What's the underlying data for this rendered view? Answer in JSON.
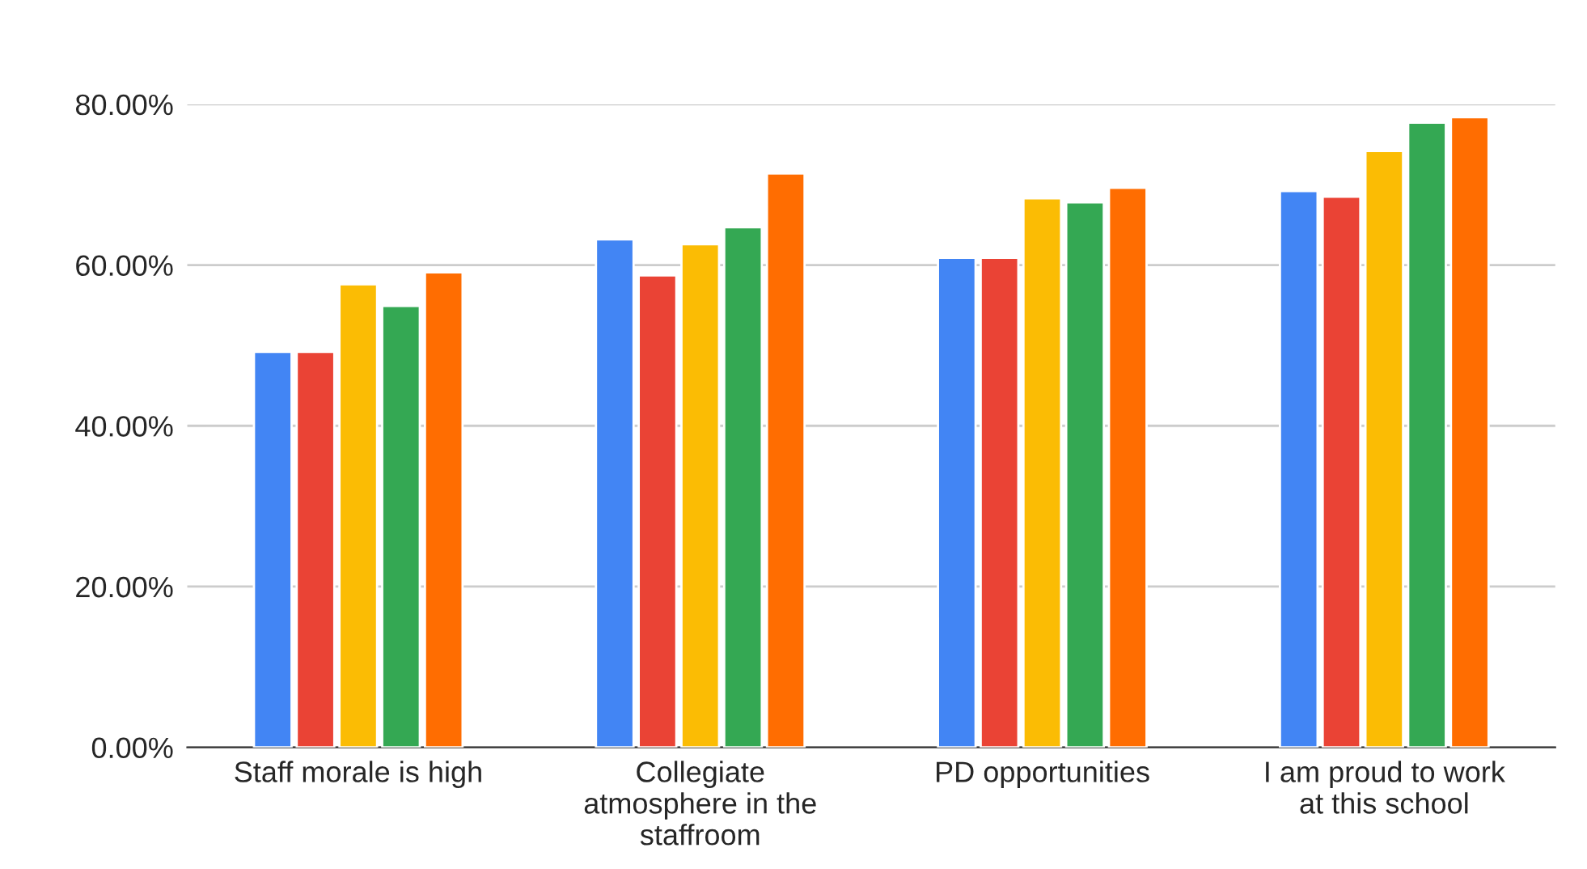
{
  "chart_data": {
    "type": "bar",
    "categories": [
      "Staff morale is high",
      "Collegiate atmosphere in the staffroom",
      "PD opportunities",
      "I am proud to work at this school"
    ],
    "series": [
      {
        "color": "#4285f4",
        "values": [
          49.2,
          63.2,
          60.9,
          69.2
        ]
      },
      {
        "color": "#ea4335",
        "values": [
          49.2,
          58.7,
          60.9,
          68.5
        ]
      },
      {
        "color": "#fbbc04",
        "values": [
          57.6,
          62.6,
          68.3,
          74.2
        ]
      },
      {
        "color": "#34a853",
        "values": [
          54.9,
          64.7,
          67.8,
          77.7
        ]
      },
      {
        "color": "#ff6d01",
        "values": [
          59.1,
          71.4,
          69.6,
          78.4
        ]
      }
    ],
    "ylim": [
      0,
      80
    ],
    "yticks": [
      {
        "value": 0,
        "label": "0.00%"
      },
      {
        "value": 20,
        "label": "20.00%"
      },
      {
        "value": 40,
        "label": "40.00%"
      },
      {
        "value": 60,
        "label": "60.00%"
      },
      {
        "value": 80,
        "label": "80.00%"
      }
    ],
    "grid": "y"
  }
}
